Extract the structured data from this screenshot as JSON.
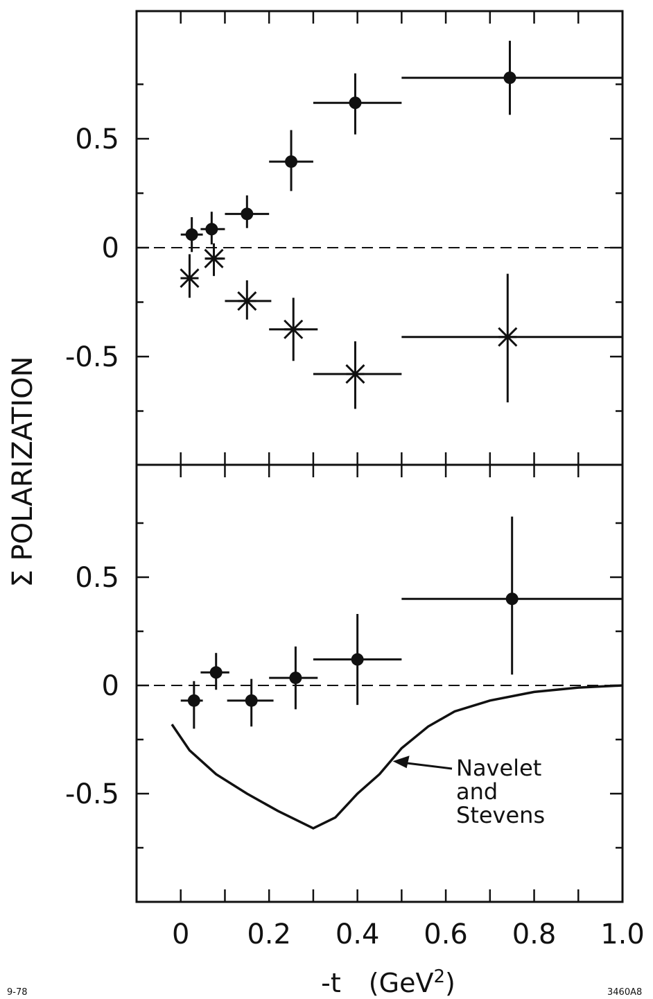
{
  "chart_data": [
    {
      "type": "scatter",
      "panel": "top",
      "ylabel": "Σ POLARIZATION",
      "ylim": [
        -1.0,
        1.05
      ],
      "xlim": [
        -0.1,
        1.0
      ],
      "yticks": [
        {
          "value": 0.5,
          "label": "0.5"
        },
        {
          "value": 0,
          "label": "0"
        },
        {
          "value": -0.5,
          "label": "-0.5"
        }
      ],
      "series": [
        {
          "marker": "filled-circle",
          "points": [
            {
              "x": 0.025,
              "y": 0.06,
              "xlo": 0.0,
              "xhi": 0.05,
              "ylo": -0.02,
              "yhi": 0.14
            },
            {
              "x": 0.07,
              "y": 0.085,
              "xlo": 0.045,
              "xhi": 0.1,
              "ylo": 0.015,
              "yhi": 0.165
            },
            {
              "x": 0.15,
              "y": 0.155,
              "xlo": 0.1,
              "xhi": 0.2,
              "ylo": 0.09,
              "yhi": 0.24
            },
            {
              "x": 0.25,
              "y": 0.395,
              "xlo": 0.2,
              "xhi": 0.3,
              "ylo": 0.26,
              "yhi": 0.54
            },
            {
              "x": 0.395,
              "y": 0.665,
              "xlo": 0.3,
              "xhi": 0.5,
              "ylo": 0.52,
              "yhi": 0.8
            },
            {
              "x": 0.745,
              "y": 0.78,
              "xlo": 0.5,
              "xhi": 1.0,
              "ylo": 0.61,
              "yhi": 0.95
            }
          ]
        },
        {
          "marker": "star",
          "points": [
            {
              "x": 0.02,
              "y": -0.14,
              "xlo": 0.0,
              "xhi": 0.04,
              "ylo": -0.23,
              "yhi": -0.03
            },
            {
              "x": 0.075,
              "y": -0.05,
              "xlo": 0.055,
              "xhi": 0.1,
              "ylo": -0.13,
              "yhi": 0.02
            },
            {
              "x": 0.15,
              "y": -0.245,
              "xlo": 0.1,
              "xhi": 0.205,
              "ylo": -0.33,
              "yhi": -0.15
            },
            {
              "x": 0.255,
              "y": -0.375,
              "xlo": 0.2,
              "xhi": 0.31,
              "ylo": -0.52,
              "yhi": -0.23
            },
            {
              "x": 0.395,
              "y": -0.58,
              "xlo": 0.3,
              "xhi": 0.5,
              "ylo": -0.74,
              "yhi": -0.43
            },
            {
              "x": 0.74,
              "y": -0.41,
              "xlo": 0.5,
              "xhi": 1.0,
              "ylo": -0.71,
              "yhi": -0.12
            }
          ]
        }
      ]
    },
    {
      "type": "scatter",
      "panel": "bottom",
      "xlabel": "-t (GeV2)",
      "ylim": [
        -1.0,
        1.0
      ],
      "xlim": [
        -0.1,
        1.0
      ],
      "xticks": [
        {
          "value": 0,
          "label": "0"
        },
        {
          "value": 0.2,
          "label": "0.2"
        },
        {
          "value": 0.4,
          "label": "0.4"
        },
        {
          "value": 0.6,
          "label": "0.6"
        },
        {
          "value": 0.8,
          "label": "0.8"
        },
        {
          "value": 1.0,
          "label": "1.0"
        }
      ],
      "yticks": [
        {
          "value": 0.5,
          "label": "0.5"
        },
        {
          "value": 0,
          "label": "0"
        },
        {
          "value": -0.5,
          "label": "-0.5"
        }
      ],
      "series": [
        {
          "marker": "filled-circle",
          "points": [
            {
              "x": 0.03,
              "y": -0.07,
              "xlo": 0.0,
              "xhi": 0.05,
              "ylo": -0.2,
              "yhi": 0.02
            },
            {
              "x": 0.08,
              "y": 0.06,
              "xlo": 0.045,
              "xhi": 0.11,
              "ylo": -0.02,
              "yhi": 0.15
            },
            {
              "x": 0.16,
              "y": -0.07,
              "xlo": 0.105,
              "xhi": 0.21,
              "ylo": -0.19,
              "yhi": 0.03
            },
            {
              "x": 0.26,
              "y": 0.035,
              "xlo": 0.2,
              "xhi": 0.31,
              "ylo": -0.11,
              "yhi": 0.18
            },
            {
              "x": 0.4,
              "y": 0.12,
              "xlo": 0.3,
              "xhi": 0.5,
              "ylo": -0.09,
              "yhi": 0.33
            },
            {
              "x": 0.75,
              "y": 0.4,
              "xlo": 0.5,
              "xhi": 1.0,
              "ylo": 0.05,
              "yhi": 0.78
            }
          ]
        },
        {
          "name": "Navelet and Stevens",
          "marker": "line",
          "points": [
            {
              "x": -0.02,
              "y": -0.18
            },
            {
              "x": 0.02,
              "y": -0.3
            },
            {
              "x": 0.08,
              "y": -0.41
            },
            {
              "x": 0.15,
              "y": -0.5
            },
            {
              "x": 0.22,
              "y": -0.58
            },
            {
              "x": 0.27,
              "y": -0.63
            },
            {
              "x": 0.3,
              "y": -0.66
            },
            {
              "x": 0.35,
              "y": -0.61
            },
            {
              "x": 0.4,
              "y": -0.5
            },
            {
              "x": 0.45,
              "y": -0.41
            },
            {
              "x": 0.5,
              "y": -0.29
            },
            {
              "x": 0.56,
              "y": -0.19
            },
            {
              "x": 0.62,
              "y": -0.12
            },
            {
              "x": 0.7,
              "y": -0.07
            },
            {
              "x": 0.8,
              "y": -0.03
            },
            {
              "x": 0.9,
              "y": -0.01
            },
            {
              "x": 1.0,
              "y": 0.0
            }
          ]
        }
      ],
      "annotation": {
        "lines": [
          "Navelet",
          "and",
          "Stevens"
        ],
        "x": 0.48,
        "y": -0.35
      }
    }
  ],
  "footer": {
    "left": "9-78",
    "right": "3460A8",
    "xlabel_prefix": "-t",
    "xlabel_unit_open": "(GeV",
    "xlabel_sup": "2",
    "xlabel_unit_close": ")"
  },
  "ylabel_text": "Σ POLARIZATION"
}
